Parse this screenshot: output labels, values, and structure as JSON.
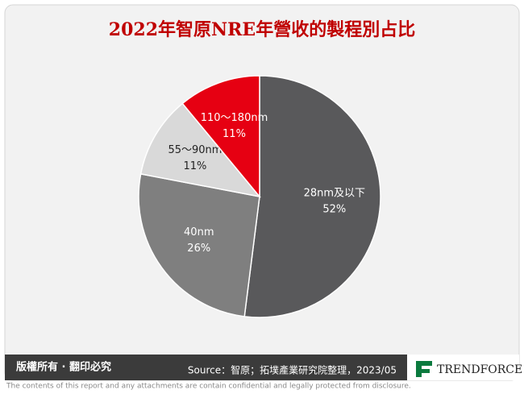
{
  "chart_data": {
    "type": "pie",
    "title": "2022年智原NRE年營收的製程別占比",
    "categories": [
      "28nm及以下",
      "40nm",
      "55～90nm",
      "110～180nm"
    ],
    "values": [
      52,
      26,
      11,
      11
    ],
    "value_labels": [
      "52%",
      "26%",
      "11%",
      "11%"
    ],
    "colors": [
      "#59595b",
      "#7f7f7f",
      "#d9d9d9",
      "#e60012"
    ]
  },
  "footer": {
    "copyright": "版權所有 · 翻印必究",
    "source": "Source：智原；拓墣產業研究院整理，2023/05",
    "brand": "TRENDFORCE",
    "disclaimer": "The contents of this report and any attachments are contain confidential and legally protected from disclosure."
  }
}
